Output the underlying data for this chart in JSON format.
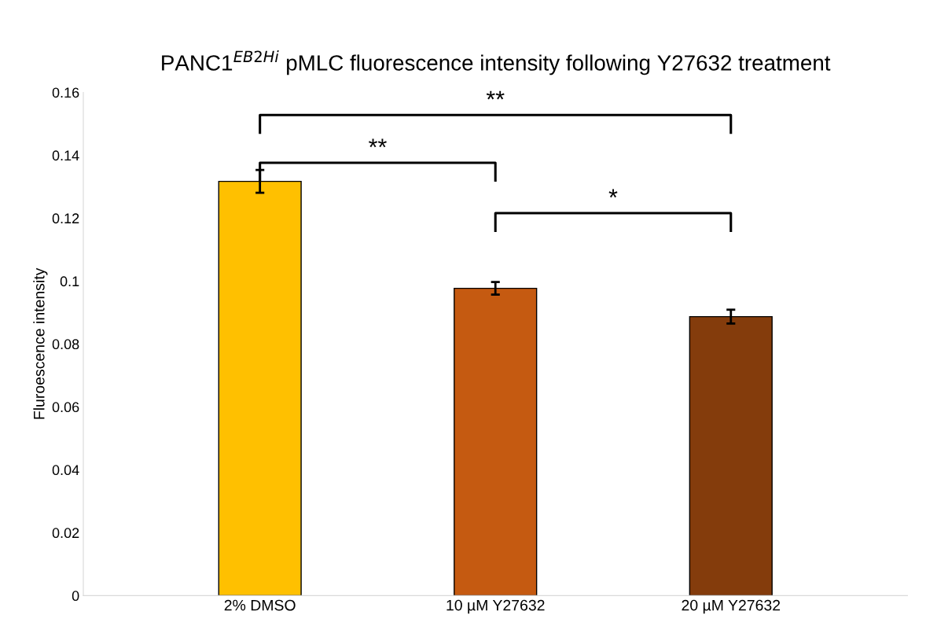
{
  "chart_data": {
    "type": "bar",
    "title": "PANC1$^{EB2Hi}$ pMLC fluorescence intensity following Y27632 treatment",
    "ylabel": "Fluroescence intensity",
    "categories": [
      "2% DMSO",
      "10 µM Y27632",
      "20 µM Y27632"
    ],
    "values": [
      0.1317,
      0.0977,
      0.0887
    ],
    "errors": [
      0.0036,
      0.002,
      0.0022
    ],
    "colors": [
      "#ffc000",
      "#c55a11",
      "#843c0c"
    ],
    "ylim": [
      0,
      0.16
    ],
    "yticks": [
      0,
      0.02,
      0.04,
      0.06,
      0.08,
      0.1,
      0.12,
      0.14,
      0.16
    ],
    "annotations": [
      "**",
      "**",
      "*"
    ],
    "grid": false,
    "legend": false
  }
}
